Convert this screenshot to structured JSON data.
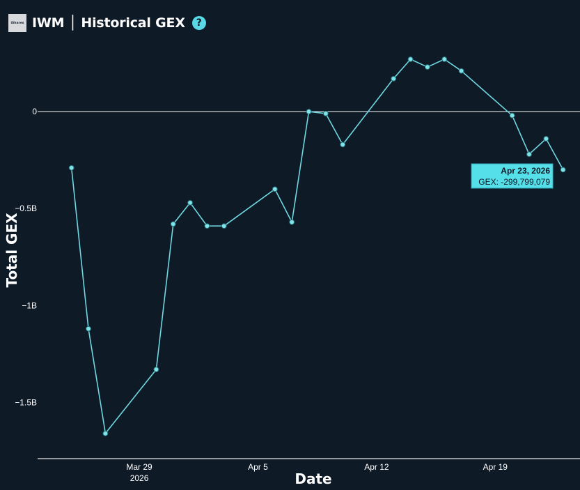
{
  "header": {
    "logo_text": "iShares",
    "title": "IWM │ Historical GEX",
    "help_glyph": "?"
  },
  "colors": {
    "background": "#0f1a27",
    "line": "#6fd8e0",
    "marker_fill": "#7fe3ea",
    "tooltip_bg": "#55dfe8",
    "zero_line": "#ffffff",
    "text": "#ffffff"
  },
  "tooltip": {
    "date": "Apr 23, 2026",
    "value": "GEX: -299,799,079"
  },
  "chart_data": {
    "type": "line",
    "xlabel": "Date",
    "ylabel": "Total GEX",
    "x_tick_labels": [
      {
        "date": "2026-03-29",
        "label": "Mar 29",
        "sublabel": "2026"
      },
      {
        "date": "2026-04-05",
        "label": "Apr 5",
        "sublabel": ""
      },
      {
        "date": "2026-04-12",
        "label": "Apr 12",
        "sublabel": ""
      },
      {
        "date": "2026-04-19",
        "label": "Apr 19",
        "sublabel": ""
      }
    ],
    "y_tick_labels": [
      {
        "value": 0,
        "label": "0"
      },
      {
        "value": -500000000,
        "label": "−0.5B"
      },
      {
        "value": -1000000000,
        "label": "−1B"
      },
      {
        "value": -1500000000,
        "label": "−1.5B"
      }
    ],
    "xlim": [
      "2026-03-23",
      "2026-04-24"
    ],
    "ylim": [
      -1790000000,
      360000000
    ],
    "zero_line": true,
    "grid": false,
    "series": [
      {
        "points": [
          {
            "x": "2026-03-25",
            "y": -290000000
          },
          {
            "x": "2026-03-26",
            "y": -1120000000
          },
          {
            "x": "2026-03-27",
            "y": -1660000000
          },
          {
            "x": "2026-03-30",
            "y": -1330000000
          },
          {
            "x": "2026-03-31",
            "y": -580000000
          },
          {
            "x": "2026-04-01",
            "y": -470000000
          },
          {
            "x": "2026-04-02",
            "y": -590000000
          },
          {
            "x": "2026-04-03",
            "y": -590000000
          },
          {
            "x": "2026-04-06",
            "y": -400000000
          },
          {
            "x": "2026-04-07",
            "y": -570000000
          },
          {
            "x": "2026-04-08",
            "y": 0
          },
          {
            "x": "2026-04-09",
            "y": -10000000
          },
          {
            "x": "2026-04-10",
            "y": -170000000
          },
          {
            "x": "2026-04-13",
            "y": 170000000
          },
          {
            "x": "2026-04-14",
            "y": 270000000
          },
          {
            "x": "2026-04-15",
            "y": 230000000
          },
          {
            "x": "2026-04-16",
            "y": 270000000
          },
          {
            "x": "2026-04-17",
            "y": 210000000
          },
          {
            "x": "2026-04-20",
            "y": -20000000
          },
          {
            "x": "2026-04-21",
            "y": -220000000
          },
          {
            "x": "2026-04-22",
            "y": -140000000
          },
          {
            "x": "2026-04-23",
            "y": -299799079
          }
        ]
      }
    ]
  }
}
